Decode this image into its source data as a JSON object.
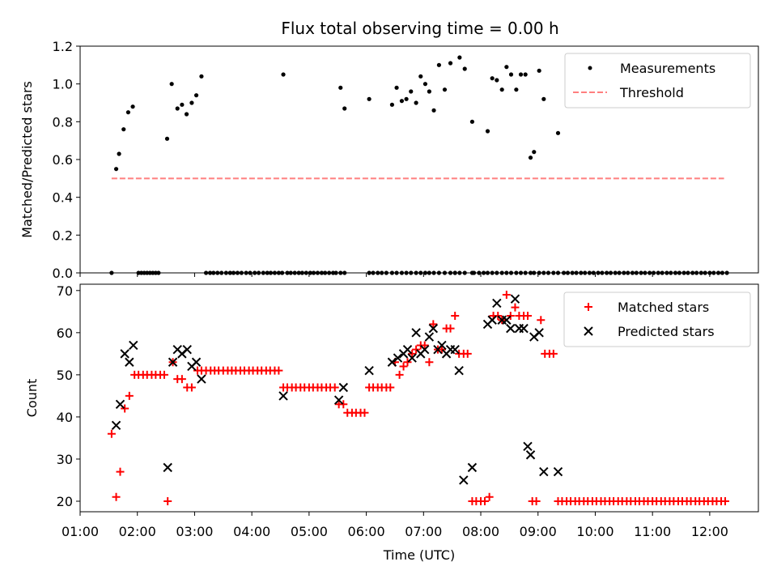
{
  "title": "Flux total observing time = 0.00 h",
  "chart_data": [
    {
      "type": "scatter",
      "ylabel": "Matched/Predicted stars",
      "xlim": [
        1.0,
        12.85
      ],
      "ylim": [
        0,
        1.2
      ],
      "yticks": [
        "0.0",
        "0.2",
        "0.4",
        "0.6",
        "0.8",
        "1.0",
        "1.2"
      ],
      "legend_position": "top-right",
      "series": [
        {
          "name": "Measurements",
          "color": "#000000",
          "marker": "dot",
          "x": [
            1.55,
            1.63,
            1.68,
            1.76,
            1.84,
            1.92,
            2.02,
            2.07,
            2.12,
            2.17,
            2.22,
            2.27,
            2.32,
            2.37,
            2.52,
            2.6,
            2.7,
            2.78,
            2.86,
            2.95,
            3.03,
            3.12,
            3.2,
            3.27,
            3.33,
            3.4,
            3.47,
            3.55,
            3.62,
            3.68,
            3.75,
            3.82,
            3.9,
            3.97,
            4.05,
            4.12,
            4.2,
            4.27,
            4.33,
            4.4,
            4.47,
            4.53,
            4.62,
            4.68,
            4.75,
            4.82,
            4.88,
            4.95,
            5.02,
            5.08,
            5.15,
            5.22,
            5.28,
            5.35,
            5.42,
            5.47,
            5.55,
            5.62,
            6.05,
            6.12,
            6.2,
            6.27,
            6.35,
            6.45,
            6.53,
            6.62,
            6.7,
            6.78,
            6.87,
            6.95,
            7.03,
            7.1,
            7.18,
            7.27,
            7.37,
            7.47,
            7.55,
            7.63,
            7.72,
            7.85,
            7.88,
            7.97,
            8.05,
            8.12,
            8.2,
            8.28,
            8.37,
            8.45,
            8.53,
            8.62,
            8.7,
            8.78,
            8.87,
            8.93,
            9.02,
            9.1,
            9.18,
            9.27,
            9.35,
            9.45,
            9.52,
            9.6,
            9.67,
            9.75,
            9.82,
            9.9,
            9.97,
            10.05,
            10.12,
            10.2,
            10.27,
            10.35,
            10.42,
            10.5,
            10.57,
            10.65,
            10.72,
            10.8,
            10.87,
            10.95,
            11.02,
            11.1,
            11.17,
            11.25,
            11.32,
            11.4,
            11.47,
            11.55,
            11.62,
            11.7,
            11.77,
            11.85,
            11.92,
            12.0,
            12.07,
            12.15,
            12.22,
            12.3,
            4.55,
            5.55,
            5.62,
            6.05,
            6.45,
            6.53,
            6.62,
            6.7,
            6.78,
            6.87,
            6.95,
            7.03,
            7.1,
            7.18,
            7.27,
            7.37,
            7.47,
            7.55,
            7.63,
            7.72,
            7.85,
            8.12,
            8.2,
            8.28,
            8.37,
            8.45,
            8.53,
            8.62,
            8.7,
            8.78,
            8.87,
            8.93,
            9.02,
            9.1,
            9.35
          ],
          "y": [
            0.0,
            0.55,
            0.63,
            0.76,
            0.85,
            0.88,
            0.0,
            0.0,
            0.0,
            0.0,
            0.0,
            0.0,
            0.0,
            0.0,
            0.71,
            1.0,
            0.87,
            0.89,
            0.84,
            0.9,
            0.94,
            1.04,
            0.0,
            0.0,
            0.0,
            0.0,
            0.0,
            0.0,
            0.0,
            0.0,
            0.0,
            0.0,
            0.0,
            0.0,
            0.0,
            0.0,
            0.0,
            0.0,
            0.0,
            0.0,
            0.0,
            0.0,
            0.0,
            0.0,
            0.0,
            0.0,
            0.0,
            0.0,
            0.0,
            0.0,
            0.0,
            0.0,
            0.0,
            0.0,
            0.0,
            0.0,
            0.0,
            0.0,
            0.0,
            0.0,
            0.0,
            0.0,
            0.0,
            0.0,
            0.0,
            0.0,
            0.0,
            0.0,
            0.0,
            0.0,
            0.0,
            0.0,
            0.0,
            0.0,
            0.0,
            0.0,
            0.0,
            0.0,
            0.0,
            0.0,
            0.0,
            0.0,
            0.0,
            0.0,
            0.0,
            0.0,
            0.0,
            0.0,
            0.0,
            0.0,
            0.0,
            0.0,
            0.0,
            0.0,
            0.0,
            0.0,
            0.0,
            0.0,
            0.0,
            0.0,
            0.0,
            0.0,
            0.0,
            0.0,
            0.0,
            0.0,
            0.0,
            0.0,
            0.0,
            0.0,
            0.0,
            0.0,
            0.0,
            0.0,
            0.0,
            0.0,
            0.0,
            0.0,
            0.0,
            0.0,
            0.0,
            0.0,
            0.0,
            0.0,
            0.0,
            0.0,
            0.0,
            0.0,
            0.0,
            0.0,
            0.0,
            0.0,
            0.0,
            0.0,
            0.0,
            0.0,
            0.0,
            0.0,
            1.05,
            0.98,
            0.87,
            0.92,
            0.89,
            0.98,
            0.91,
            0.92,
            0.96,
            0.9,
            1.04,
            1.0,
            0.96,
            0.86,
            1.1,
            0.97,
            1.11,
            0.0,
            1.14,
            1.08,
            0.8,
            0.75,
            1.03,
            1.02,
            0.97,
            1.09,
            1.05,
            0.97,
            1.05,
            1.05,
            0.61,
            0.64,
            1.07,
            0.92,
            0.74
          ]
        },
        {
          "name": "Threshold",
          "color": "#ff7f7f",
          "style": "dashed",
          "x": [
            1.55,
            12.25
          ],
          "y": [
            0.5,
            0.5
          ]
        }
      ]
    },
    {
      "type": "scatter",
      "ylabel": "Count",
      "xlabel": "Time (UTC)",
      "xlim": [
        1.0,
        12.85
      ],
      "ylim": [
        17.5,
        71.5
      ],
      "yticks": [
        "20",
        "30",
        "40",
        "50",
        "60",
        "70"
      ],
      "xticks": [
        "01:00",
        "02:00",
        "03:00",
        "04:00",
        "05:00",
        "06:00",
        "07:00",
        "08:00",
        "09:00",
        "10:00",
        "11:00",
        "12:00"
      ],
      "legend_position": "top-right",
      "series": [
        {
          "name": "Matched stars",
          "color": "#ff0000",
          "marker": "plus",
          "x": [
            1.55,
            1.63,
            1.7,
            1.78,
            1.86,
            1.95,
            2.02,
            2.1,
            2.17,
            2.25,
            2.32,
            2.4,
            2.47,
            2.53,
            2.62,
            2.7,
            2.78,
            2.87,
            2.95,
            3.05,
            3.12,
            3.2,
            3.28,
            3.35,
            3.42,
            3.5,
            3.58,
            3.65,
            3.72,
            3.8,
            3.87,
            3.95,
            4.02,
            4.1,
            4.17,
            4.25,
            4.32,
            4.4,
            4.47,
            4.55,
            4.62,
            4.7,
            4.77,
            4.85,
            4.92,
            5.0,
            5.07,
            5.15,
            5.22,
            5.3,
            5.37,
            5.45,
            5.52,
            5.6,
            5.67,
            5.75,
            5.82,
            5.9,
            5.97,
            6.05,
            6.12,
            6.2,
            6.27,
            6.35,
            6.42,
            6.5,
            6.58,
            6.65,
            6.72,
            6.8,
            6.87,
            6.95,
            7.02,
            7.1,
            7.17,
            7.25,
            7.32,
            7.4,
            7.47,
            7.55,
            7.62,
            7.7,
            7.77,
            7.85,
            7.92,
            8.0,
            8.07,
            8.15,
            8.22,
            8.3,
            8.37,
            8.45,
            8.52,
            8.6,
            8.67,
            8.75,
            8.82,
            8.9,
            8.97,
            9.05,
            9.12,
            9.2,
            9.27,
            9.35,
            9.42,
            9.5,
            9.57,
            9.65,
            9.72,
            9.8,
            9.87,
            9.95,
            10.02,
            10.1,
            10.17,
            10.25,
            10.32,
            10.4,
            10.47,
            10.55,
            10.62,
            10.7,
            10.77,
            10.85,
            10.92,
            11.0,
            11.07,
            11.15,
            11.22,
            11.3,
            11.37,
            11.45,
            11.52,
            11.6,
            11.67,
            11.75,
            11.82,
            11.9,
            11.97,
            12.05,
            12.12,
            12.2,
            12.27
          ],
          "y": [
            36,
            21,
            27,
            42,
            45,
            50,
            50,
            50,
            50,
            50,
            50,
            50,
            50,
            20,
            53,
            49,
            49,
            47,
            47,
            51,
            51,
            51,
            51,
            51,
            51,
            51,
            51,
            51,
            51,
            51,
            51,
            51,
            51,
            51,
            51,
            51,
            51,
            51,
            51,
            47,
            47,
            47,
            47,
            47,
            47,
            47,
            47,
            47,
            47,
            47,
            47,
            47,
            43,
            43,
            41,
            41,
            41,
            41,
            41,
            47,
            47,
            47,
            47,
            47,
            47,
            53,
            50,
            52,
            53,
            55,
            56,
            57,
            57,
            53,
            62,
            56,
            56,
            61,
            61,
            64,
            55,
            55,
            55,
            20,
            20,
            20,
            20,
            21,
            64,
            64,
            63,
            69,
            64,
            66,
            64,
            64,
            64,
            20,
            20,
            63,
            55,
            55,
            55,
            20,
            20,
            20,
            20,
            20,
            20,
            20,
            20,
            20,
            20,
            20,
            20,
            20,
            20,
            20,
            20,
            20,
            20,
            20,
            20,
            20,
            20,
            20,
            20,
            20,
            20,
            20,
            20,
            20,
            20,
            20,
            20,
            20,
            20,
            20,
            20,
            20,
            20,
            20,
            20
          ]
        },
        {
          "name": "Predicted stars",
          "color": "#000000",
          "marker": "x",
          "x": [
            1.63,
            1.7,
            1.78,
            1.86,
            1.93,
            2.53,
            2.62,
            2.7,
            2.78,
            2.87,
            2.95,
            3.03,
            3.12,
            4.55,
            5.52,
            5.6,
            6.05,
            6.45,
            6.55,
            6.65,
            6.72,
            6.8,
            6.87,
            6.95,
            7.02,
            7.1,
            7.17,
            7.25,
            7.32,
            7.4,
            7.47,
            7.55,
            7.62,
            7.7,
            7.85,
            8.12,
            8.2,
            8.28,
            8.37,
            8.45,
            8.52,
            8.6,
            8.67,
            8.75,
            8.82,
            8.87,
            8.93,
            9.02,
            9.1,
            9.35
          ],
          "y": [
            38,
            43,
            55,
            53,
            57,
            28,
            53,
            56,
            55,
            56,
            52,
            53,
            49,
            45,
            44,
            47,
            51,
            53,
            54,
            55,
            56,
            54,
            60,
            55,
            56,
            59,
            61,
            56,
            57,
            55,
            56,
            56,
            51,
            25,
            28,
            62,
            63,
            67,
            63,
            63,
            61,
            68,
            61,
            61,
            33,
            31,
            59,
            60,
            27,
            27
          ]
        }
      ]
    }
  ]
}
